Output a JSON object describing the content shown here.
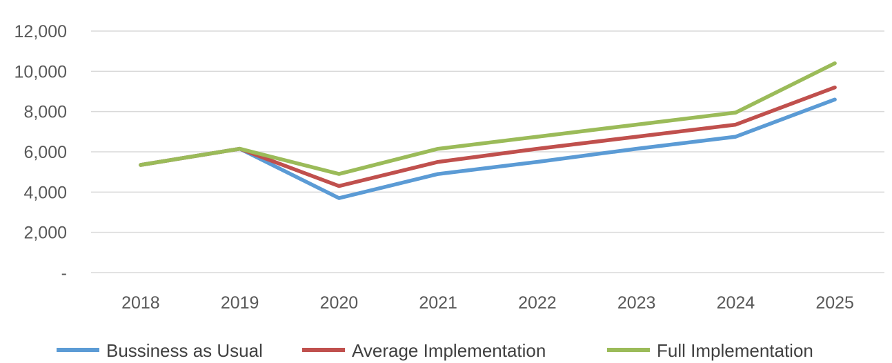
{
  "chart_data": {
    "type": "line",
    "title": "",
    "xlabel": "",
    "ylabel": "",
    "categories": [
      "2018",
      "2019",
      "2020",
      "2021",
      "2022",
      "2023",
      "2024",
      "2025"
    ],
    "ylim": [
      0,
      12000
    ],
    "yticks": [
      {
        "value": 0,
        "label": "-"
      },
      {
        "value": 2000,
        "label": "2,000"
      },
      {
        "value": 4000,
        "label": "4,000"
      },
      {
        "value": 6000,
        "label": "6,000"
      },
      {
        "value": 8000,
        "label": "8,000"
      },
      {
        "value": 10000,
        "label": "10,000"
      },
      {
        "value": 12000,
        "label": "12,000"
      }
    ],
    "grid": true,
    "legend_position": "bottom",
    "series": [
      {
        "name": "Bussiness as Usual",
        "color": "#5b9bd5",
        "values": [
          5350,
          6150,
          3700,
          4900,
          5500,
          6150,
          6750,
          8600
        ]
      },
      {
        "name": "Average Implementation",
        "color": "#c0504d",
        "values": [
          5350,
          6150,
          4300,
          5500,
          6150,
          6750,
          7350,
          9200
        ]
      },
      {
        "name": "Full Implementation",
        "color": "#9bbb59",
        "values": [
          5350,
          6150,
          4900,
          6150,
          6750,
          7350,
          7950,
          10400
        ]
      }
    ]
  }
}
